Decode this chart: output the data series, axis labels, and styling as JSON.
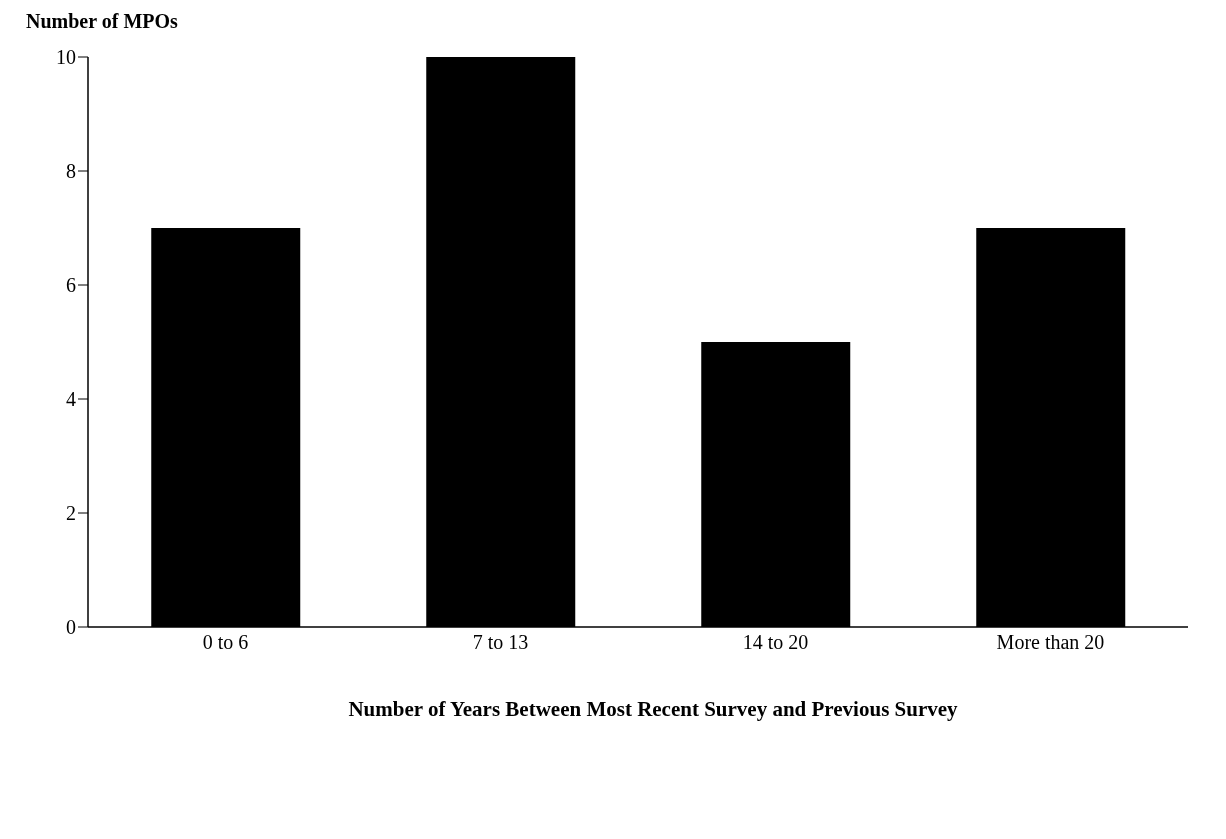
{
  "chart_data": {
    "type": "bar",
    "ylabel": "Number of MPOs",
    "xlabel": "Number of Years Between Most Recent Survey and Previous Survey",
    "categories": [
      "0 to 6",
      "7 to 13",
      "14 to 20",
      "More than 20"
    ],
    "values": [
      7,
      10,
      5,
      7
    ],
    "color": "#000000",
    "ylim": [
      0,
      10
    ],
    "yticks": [
      0,
      2,
      4,
      6,
      8,
      10
    ],
    "grid": false
  }
}
